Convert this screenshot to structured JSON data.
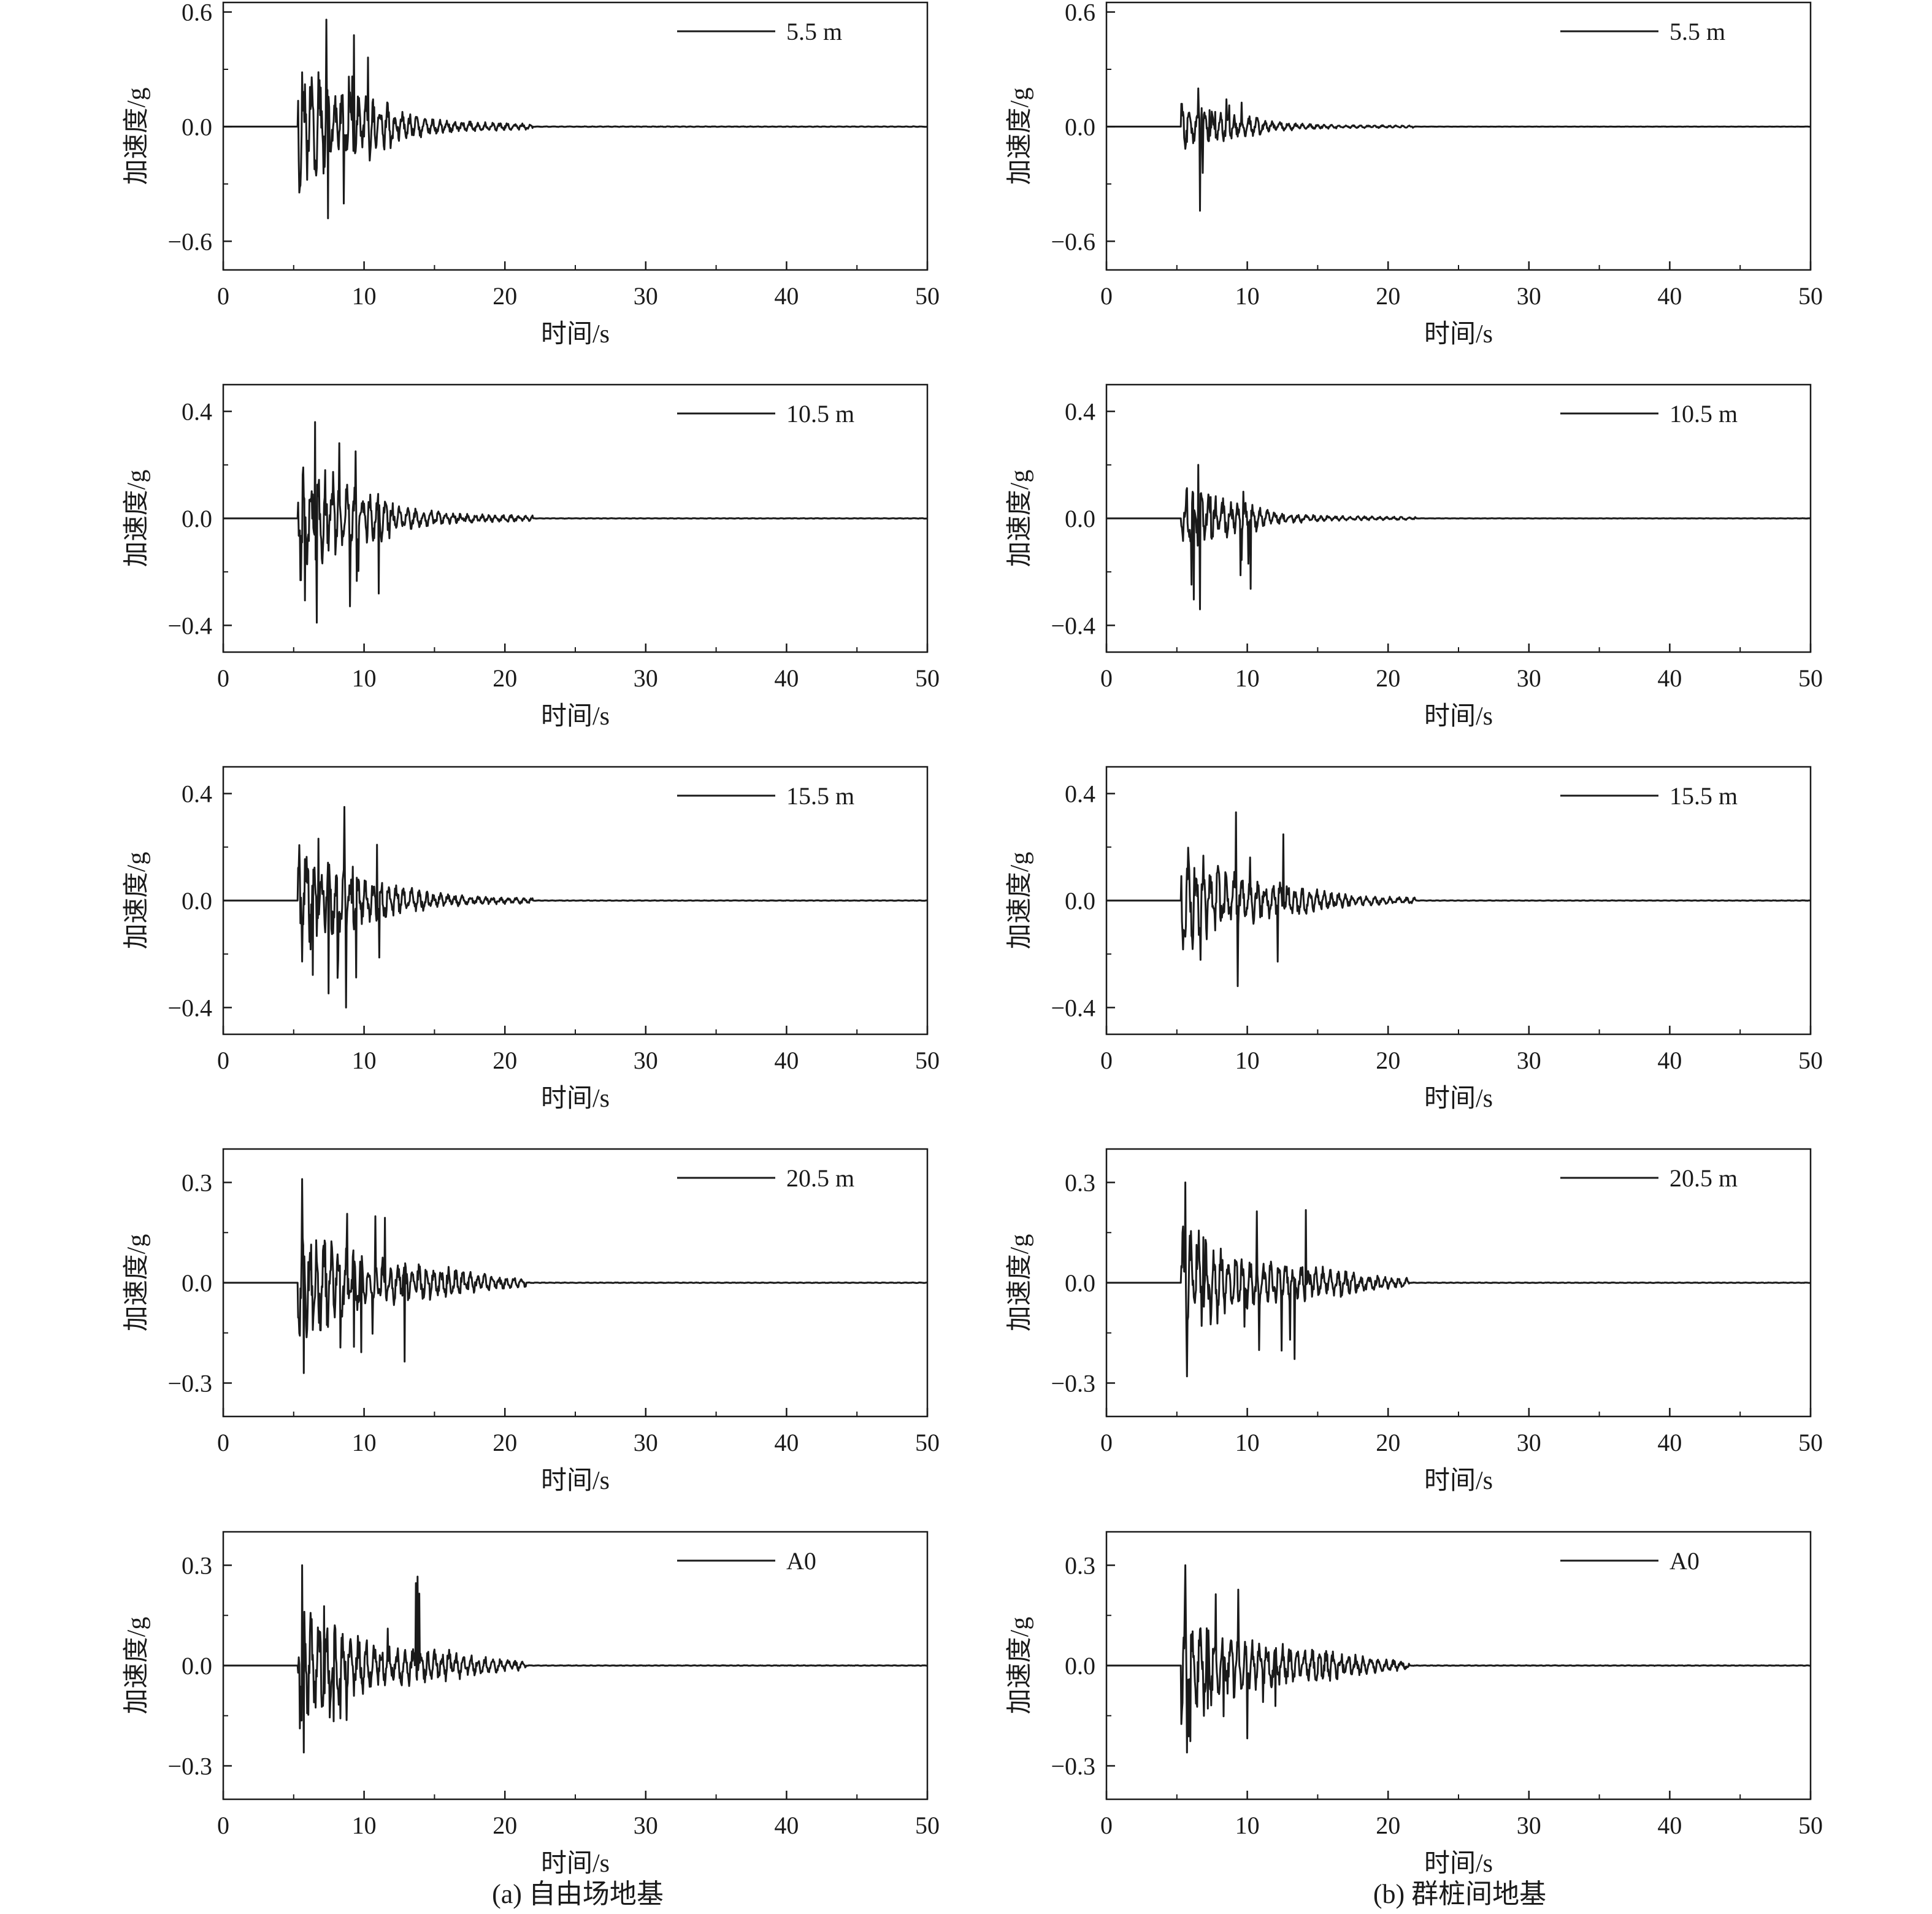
{
  "captions": {
    "left": "(a) 自由场地基",
    "right": "(b) 群桩间地基"
  },
  "chart_data": [
    {
      "type": "line",
      "panel": "a",
      "legend": "5.5 m",
      "xlabel": "时间/s",
      "ylabel": "加速度/g",
      "xlim": [
        0,
        50
      ],
      "ylim": [
        -0.75,
        0.65
      ],
      "xticks": [
        0,
        10,
        20,
        30,
        40,
        50
      ],
      "yticks": [
        -0.6,
        0.0,
        0.6
      ],
      "ytick_labels": [
        "−0.6",
        "0.0",
        "0.6"
      ],
      "peak_max": 0.56,
      "peak_min": -0.48,
      "peak_time": 7.3,
      "strong_motion": [
        5.3,
        12.0
      ],
      "decay_end": 22.0,
      "legend_position": "top-right",
      "grid": false
    },
    {
      "type": "line",
      "panel": "a",
      "legend": "10.5 m",
      "xlabel": "时间/s",
      "ylabel": "加速度/g",
      "xlim": [
        0,
        50
      ],
      "ylim": [
        -0.5,
        0.5
      ],
      "xticks": [
        0,
        10,
        20,
        30,
        40,
        50
      ],
      "yticks": [
        -0.4,
        0.0,
        0.4
      ],
      "ytick_labels": [
        "−0.4",
        "0.0",
        "0.4"
      ],
      "peak_max": 0.36,
      "peak_min": -0.39,
      "peak_time": 6.5,
      "strong_motion": [
        5.3,
        12.0
      ],
      "decay_end": 22.0,
      "legend_position": "top-right",
      "grid": false
    },
    {
      "type": "line",
      "panel": "a",
      "legend": "15.5 m",
      "xlabel": "时间/s",
      "ylabel": "加速度/g",
      "xlim": [
        0,
        50
      ],
      "ylim": [
        -0.5,
        0.5
      ],
      "xticks": [
        0,
        10,
        20,
        30,
        40,
        50
      ],
      "yticks": [
        -0.4,
        0.0,
        0.4
      ],
      "ytick_labels": [
        "−0.4",
        "0.0",
        "0.4"
      ],
      "peak_max": 0.35,
      "peak_min": -0.4,
      "peak_time": 8.6,
      "strong_motion": [
        5.3,
        12.5
      ],
      "decay_end": 22.0,
      "legend_position": "top-right",
      "grid": false
    },
    {
      "type": "line",
      "panel": "a",
      "legend": "20.5 m",
      "xlabel": "时间/s",
      "ylabel": "加速度/g",
      "xlim": [
        0,
        50
      ],
      "ylim": [
        -0.4,
        0.4
      ],
      "xticks": [
        0,
        10,
        20,
        30,
        40,
        50
      ],
      "yticks": [
        -0.3,
        0.0,
        0.3
      ],
      "ytick_labels": [
        "−0.3",
        "0.0",
        "0.3"
      ],
      "peak_max": 0.31,
      "peak_min": -0.27,
      "peak_time": 5.6,
      "strong_motion": [
        5.3,
        16.0
      ],
      "decay_end": 21.5,
      "legend_position": "top-right",
      "grid": false
    },
    {
      "type": "line",
      "panel": "a",
      "legend": "A0",
      "xlabel": "时间/s",
      "ylabel": "加速度/g",
      "xlim": [
        0,
        50
      ],
      "ylim": [
        -0.4,
        0.4
      ],
      "xticks": [
        0,
        10,
        20,
        30,
        40,
        50
      ],
      "yticks": [
        -0.3,
        0.0,
        0.3
      ],
      "ytick_labels": [
        "−0.3",
        "0.0",
        "0.3"
      ],
      "peak_max": 0.3,
      "peak_min": -0.26,
      "peak_time": 5.6,
      "strong_motion": [
        5.3,
        16.0
      ],
      "decay_end": 21.5,
      "legend_position": "top-right",
      "grid": false
    },
    {
      "type": "line",
      "panel": "b",
      "legend": "5.5 m",
      "xlabel": "时间/s",
      "ylabel": "加速度/g",
      "xlim": [
        0,
        50
      ],
      "ylim": [
        -0.75,
        0.65
      ],
      "xticks": [
        0,
        10,
        20,
        30,
        40,
        50
      ],
      "yticks": [
        -0.6,
        0.0,
        0.6
      ],
      "ytick_labels": [
        "−0.6",
        "0.0",
        "0.6"
      ],
      "peak_max": 0.2,
      "peak_min": -0.44,
      "peak_time": 6.5,
      "strong_motion": [
        5.3,
        11.0
      ],
      "decay_end": 22.0,
      "legend_position": "top-right",
      "grid": false
    },
    {
      "type": "line",
      "panel": "b",
      "legend": "10.5 m",
      "xlabel": "时间/s",
      "ylabel": "加速度/g",
      "xlim": [
        0,
        50
      ],
      "ylim": [
        -0.5,
        0.5
      ],
      "xticks": [
        0,
        10,
        20,
        30,
        40,
        50
      ],
      "yticks": [
        -0.4,
        0.0,
        0.4
      ],
      "ytick_labels": [
        "−0.4",
        "0.0",
        "0.4"
      ],
      "peak_max": 0.2,
      "peak_min": -0.34,
      "peak_time": 6.5,
      "strong_motion": [
        5.3,
        11.0
      ],
      "decay_end": 22.0,
      "legend_position": "top-right",
      "grid": false
    },
    {
      "type": "line",
      "panel": "b",
      "legend": "15.5 m",
      "xlabel": "时间/s",
      "ylabel": "加速度/g",
      "xlim": [
        0,
        50
      ],
      "ylim": [
        -0.5,
        0.5
      ],
      "xticks": [
        0,
        10,
        20,
        30,
        40,
        50
      ],
      "yticks": [
        -0.4,
        0.0,
        0.4
      ],
      "ytick_labels": [
        "−0.4",
        "0.0",
        "0.4"
      ],
      "peak_max": 0.33,
      "peak_min": -0.32,
      "peak_time": 9.2,
      "strong_motion": [
        5.3,
        14.0
      ],
      "decay_end": 22.0,
      "legend_position": "top-right",
      "grid": false
    },
    {
      "type": "line",
      "panel": "b",
      "legend": "20.5 m",
      "xlabel": "时间/s",
      "ylabel": "加速度/g",
      "xlim": [
        0,
        50
      ],
      "ylim": [
        -0.4,
        0.4
      ],
      "xticks": [
        0,
        10,
        20,
        30,
        40,
        50
      ],
      "yticks": [
        -0.3,
        0.0,
        0.3
      ],
      "ytick_labels": [
        "−0.3",
        "0.0",
        "0.3"
      ],
      "peak_max": 0.3,
      "peak_min": -0.28,
      "peak_time": 5.6,
      "strong_motion": [
        5.3,
        16.0
      ],
      "decay_end": 21.5,
      "legend_position": "top-right",
      "grid": false
    },
    {
      "type": "line",
      "panel": "b",
      "legend": "A0",
      "xlabel": "时间/s",
      "ylabel": "加速度/g",
      "xlim": [
        0,
        50
      ],
      "ylim": [
        -0.4,
        0.4
      ],
      "xticks": [
        0,
        10,
        20,
        30,
        40,
        50
      ],
      "yticks": [
        -0.3,
        0.0,
        0.3
      ],
      "ytick_labels": [
        "−0.3",
        "0.0",
        "0.3"
      ],
      "peak_max": 0.3,
      "peak_min": -0.26,
      "peak_time": 5.6,
      "strong_motion": [
        5.3,
        16.0
      ],
      "decay_end": 21.5,
      "legend_position": "top-right",
      "grid": false
    }
  ]
}
